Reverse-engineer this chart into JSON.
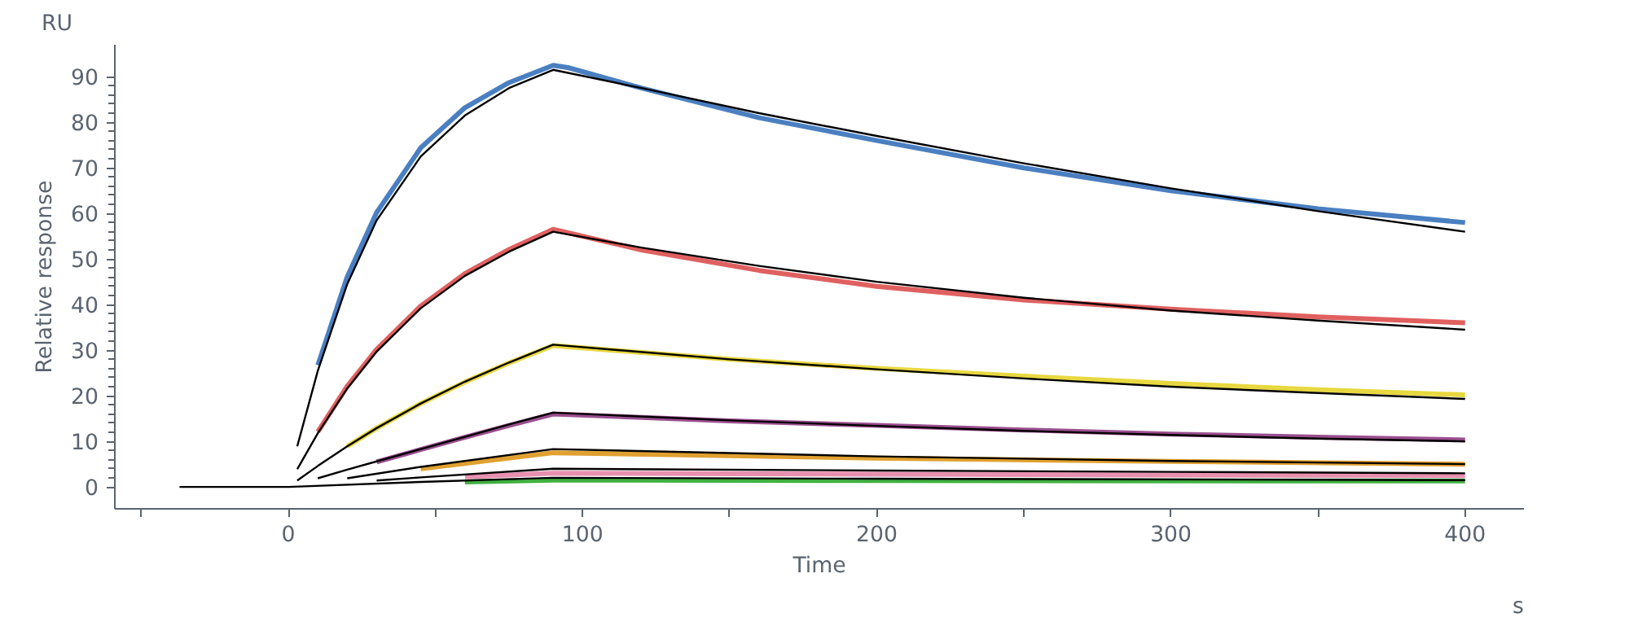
{
  "chart_data": {
    "type": "line",
    "xlabel": "Time",
    "ylabel": "Relative response",
    "annotations": [
      "RU",
      "s"
    ],
    "xlim": [
      -59,
      420
    ],
    "ylim": [
      -4.8,
      97
    ],
    "xticks": [
      {
        "value": -50,
        "label": null
      },
      0,
      {
        "value": 50,
        "label": null
      },
      100,
      {
        "value": 150,
        "label": null
      },
      200,
      {
        "value": 250,
        "label": null
      },
      300,
      {
        "value": 350,
        "label": null
      },
      400
    ],
    "yticks": [
      0,
      10,
      20,
      30,
      40,
      50,
      60,
      70,
      80,
      90
    ],
    "grid": false,
    "marker": "none",
    "line_style": "solid",
    "series": [
      {
        "color": "#4a7fc1",
        "x": [
          10,
          20,
          30,
          45,
          60,
          75,
          90,
          95,
          120,
          160,
          200,
          250,
          300,
          350,
          400
        ],
        "values": [
          26.7,
          46.1,
          60.2,
          74.4,
          83.2,
          88.7,
          92.5,
          92,
          87.5,
          81,
          76,
          70,
          65,
          61,
          58
        ]
      },
      {
        "color": "#e06060",
        "x": [
          10,
          20,
          30,
          45,
          60,
          75,
          90,
          120,
          160,
          200,
          250,
          300,
          350,
          400
        ],
        "values": [
          12.1,
          22.1,
          30.2,
          39.7,
          46.8,
          52.1,
          56.5,
          52,
          47.5,
          44,
          41,
          39,
          37.3,
          36
        ]
      },
      {
        "color": "#e8d840",
        "x": [
          20,
          30,
          45,
          60,
          75,
          90,
          150,
          200,
          250,
          300,
          350,
          400
        ],
        "values": [
          8.9,
          12.9,
          18.3,
          23,
          27.2,
          31,
          28,
          26,
          24.3,
          22.7,
          21.3,
          20.2
        ]
      },
      {
        "color": "#9b4f8f",
        "x": [
          30,
          45,
          60,
          75,
          90,
          150,
          200,
          250,
          300,
          350,
          400
        ],
        "values": [
          5.5,
          8.2,
          10.9,
          13.5,
          16,
          14.5,
          13.5,
          12.5,
          11.6,
          10.9,
          10.3
        ]
      },
      {
        "color": "#e0a030",
        "x": [
          45,
          90,
          200,
          300,
          400
        ],
        "values": [
          4,
          7.5,
          6.3,
          5.6,
          5
        ]
      },
      {
        "color": "#e890b0",
        "x": [
          60,
          90,
          200,
          300,
          400
        ],
        "values": [
          2.2,
          3,
          2.8,
          2.6,
          2.5
        ]
      },
      {
        "color": "#40b040",
        "x": [
          60,
          90,
          200,
          400
        ],
        "values": [
          1.1,
          1.5,
          1.4,
          1.3
        ]
      },
      {
        "color": "#000000",
        "x": [
          3,
          10,
          20,
          30,
          45,
          60,
          75,
          90,
          120,
          160,
          200,
          250,
          300,
          350,
          400
        ],
        "values": [
          8.9,
          25.5,
          44.5,
          58.5,
          72.5,
          81.5,
          87.5,
          91.5,
          87.5,
          82,
          77,
          71,
          65.5,
          60.5,
          56
        ]
      },
      {
        "color": "#000000",
        "x": [
          3,
          10,
          20,
          30,
          45,
          60,
          75,
          90,
          120,
          160,
          200,
          250,
          300,
          350,
          400
        ],
        "values": [
          3.9,
          11.8,
          21.6,
          29.7,
          39.2,
          46.3,
          51.6,
          56,
          52.5,
          48.5,
          45,
          41.5,
          38.7,
          36.5,
          34.5
        ]
      },
      {
        "color": "#000000",
        "x": [
          3,
          10,
          20,
          30,
          45,
          60,
          75,
          90,
          150,
          200,
          250,
          300,
          350,
          400
        ],
        "values": [
          1.4,
          4.6,
          8.9,
          12.9,
          18.3,
          23.1,
          27.3,
          31.2,
          28,
          25.8,
          23.8,
          22,
          20.6,
          19.3
        ]
      },
      {
        "color": "#000000",
        "x": [
          10,
          20,
          30,
          45,
          60,
          75,
          90,
          150,
          200,
          250,
          300,
          350,
          400
        ],
        "values": [
          1.9,
          3.8,
          5.6,
          8.3,
          11,
          13.7,
          16.3,
          14.6,
          13.4,
          12.3,
          11.4,
          10.6,
          10
        ]
      },
      {
        "color": "#000000",
        "x": [
          20,
          45,
          90,
          200,
          300,
          400
        ],
        "values": [
          1.9,
          4.4,
          8.3,
          6.7,
          5.7,
          5
        ]
      },
      {
        "color": "#000000",
        "x": [
          30,
          45,
          90,
          200,
          300,
          400
        ],
        "values": [
          1.4,
          2.1,
          4,
          3.6,
          3.3,
          3
        ]
      },
      {
        "color": "#000000",
        "x": [
          -37,
          0,
          45,
          90,
          200,
          400
        ],
        "values": [
          0,
          0,
          1.1,
          2,
          1.8,
          1.5
        ]
      }
    ]
  }
}
